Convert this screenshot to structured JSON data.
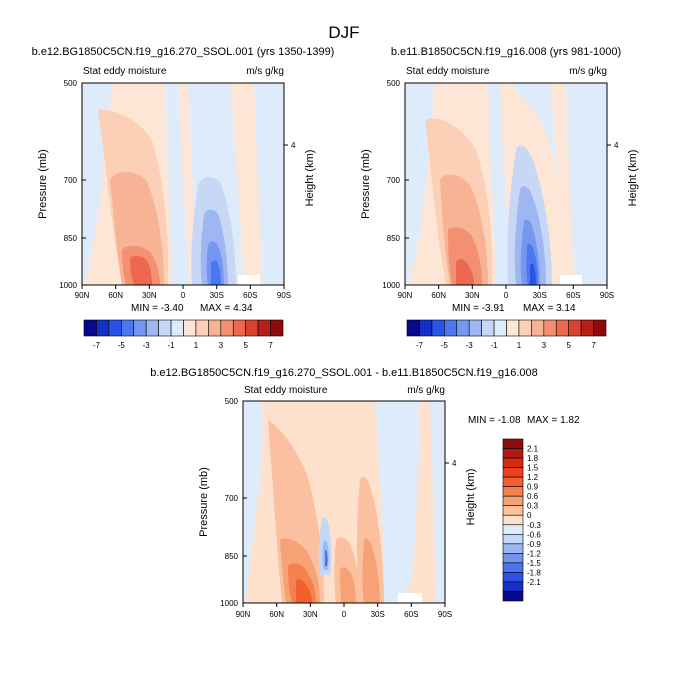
{
  "figure_title": "DJF",
  "chart_data": [
    {
      "type": "heatmap",
      "title": "b.e12.BG1850C5CN.f19_g16.270_SSOL.001 (yrs 1350-1399)",
      "left_string": "Stat eddy moisture",
      "right_string": "m/s g/kg",
      "ylabel": "Pressure (mb)",
      "y2label": "Height (km)",
      "yticks": [
        "500",
        "700",
        "850",
        "1000"
      ],
      "y2ticks": [
        "4"
      ],
      "xticks": [
        "90N",
        "60N",
        "30N",
        "0",
        "30S",
        "60S",
        "90S"
      ],
      "xlim": [
        90,
        -90
      ],
      "ylim": [
        1000,
        500
      ],
      "min_label": "MIN = -3.40",
      "max_label": "MAX = 4.34",
      "min": -3.4,
      "max": 4.34
    },
    {
      "type": "heatmap",
      "title": "b.e11.B1850C5CN.f19_g16.008 (yrs 981-1000)",
      "left_string": "Stat eddy moisture",
      "right_string": "m/s g/kg",
      "ylabel": "Pressure (mb)",
      "y2label": "Height (km)",
      "yticks": [
        "500",
        "700",
        "850",
        "1000"
      ],
      "y2ticks": [
        "4"
      ],
      "xticks": [
        "90N",
        "60N",
        "30N",
        "0",
        "30S",
        "60S",
        "90S"
      ],
      "xlim": [
        90,
        -90
      ],
      "ylim": [
        1000,
        500
      ],
      "min_label": "MIN = -3.91",
      "max_label": "MAX = 3.14",
      "min": -3.91,
      "max": 3.14
    },
    {
      "type": "heatmap",
      "title": "b.e12.BG1850C5CN.f19_g16.270_SSOL.001 - b.e11.B1850C5CN.f19_g16.008",
      "left_string": "Stat eddy moisture",
      "right_string": "m/s g/kg",
      "ylabel": "Pressure (mb)",
      "y2label": "Height (km)",
      "yticks": [
        "500",
        "700",
        "850",
        "1000"
      ],
      "y2ticks": [
        "4"
      ],
      "xticks": [
        "90N",
        "60N",
        "30N",
        "0",
        "30S",
        "60S",
        "90S"
      ],
      "xlim": [
        90,
        -90
      ],
      "ylim": [
        1000,
        500
      ],
      "min_label": "MIN = -1.08",
      "max_label": "MAX =  1.82",
      "min": -1.08,
      "max": 1.82
    }
  ],
  "colorbar_top": {
    "orientation": "horizontal",
    "colors": [
      "#08088b",
      "#1530c8",
      "#2853e6",
      "#4a78ee",
      "#7597f0",
      "#9eb7f2",
      "#c6d8f5",
      "#deebfb",
      "#fde6d6",
      "#fbd0b6",
      "#f8b394",
      "#f39072",
      "#ec6950",
      "#d84330",
      "#b8201a",
      "#8e0a0c"
    ],
    "labels": [
      "-7",
      "-5",
      "-3",
      "-1",
      "1",
      "3",
      "5",
      "7"
    ]
  },
  "colorbar_diff": {
    "orientation": "vertical",
    "colors": [
      "#8e0a0c",
      "#b31a12",
      "#d42b17",
      "#ec401f",
      "#f26030",
      "#f5814f",
      "#f7a276",
      "#fbc0a0",
      "#fde1cd",
      "#deebfb",
      "#c3d7f6",
      "#9cb8f0",
      "#7494ee",
      "#4a74ef",
      "#2a52e6",
      "#1530c8",
      "#08088b"
    ],
    "labels": [
      "2.1",
      "1.8",
      "1.5",
      "1.2",
      "0.9",
      "0.6",
      "0.3",
      "0",
      "-0.3",
      "-0.6",
      "-0.9",
      "-1.2",
      "-1.5",
      "-1.8",
      "-2.1"
    ]
  }
}
